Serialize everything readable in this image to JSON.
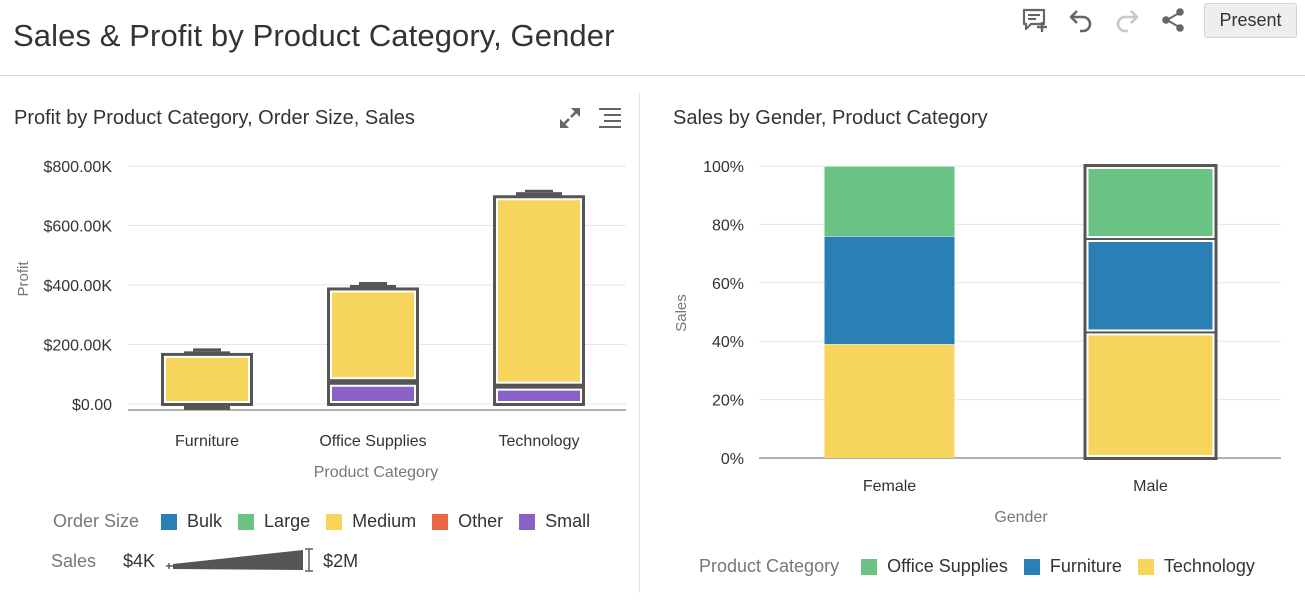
{
  "page": {
    "title": "Sales & Profit by Product Category, Gender"
  },
  "toolbar": {
    "icons": [
      "comment-add-icon",
      "undo-icon",
      "redo-icon",
      "share-icon"
    ],
    "present_label": "Present"
  },
  "colors": {
    "bulk": "#2a7fb4",
    "large": "#6ac384",
    "medium": "#f7d45c",
    "other": "#ec6645",
    "small": "#8a62c7",
    "outline": "#555555"
  },
  "left_panel": {
    "title": "Profit by Product Category, Order Size, Sales",
    "icons": [
      "expand-icon",
      "menu-icon"
    ],
    "legend": {
      "label": "Order Size",
      "items": [
        {
          "name": "Bulk",
          "color": "#2a7fb4"
        },
        {
          "name": "Large",
          "color": "#6ac384"
        },
        {
          "name": "Medium",
          "color": "#f7d45c"
        },
        {
          "name": "Other",
          "color": "#ec6645"
        },
        {
          "name": "Small",
          "color": "#8a62c7"
        }
      ]
    },
    "size_legend": {
      "label": "Sales",
      "min": "$4K",
      "max": "$2M"
    }
  },
  "right_panel": {
    "title": "Sales by Gender, Product Category",
    "legend": {
      "label": "Product Category",
      "items": [
        {
          "name": "Office Supplies",
          "color": "#6ac384"
        },
        {
          "name": "Furniture",
          "color": "#2a7fb4"
        },
        {
          "name": "Technology",
          "color": "#f7d45c"
        }
      ]
    }
  },
  "chart_data": [
    {
      "type": "bar",
      "title": "Profit by Product Category, Order Size, Sales",
      "xlabel": "Product Category",
      "ylabel": "Profit",
      "categories": [
        "Furniture",
        "Office Supplies",
        "Technology"
      ],
      "ylim": [
        -20,
        800
      ],
      "yticks": [
        0,
        200,
        400,
        600,
        800
      ],
      "ytick_labels": [
        "$0.00",
        "$200.00K",
        "$400.00K",
        "$600.00K",
        "$800.00K"
      ],
      "unit": "thousands of dollars",
      "grid": true,
      "stacking": "stacked",
      "series": [
        {
          "name": "Small",
          "color": "#8a62c7",
          "segments": [
            [
              0,
              0
            ],
            [
              0,
              68
            ],
            [
              0,
              55
            ]
          ]
        },
        {
          "name": "Medium",
          "color": "#f7d45c",
          "segments": [
            [
              0,
              165
            ],
            [
              80,
              385
            ],
            [
              65,
              695
            ]
          ]
        },
        {
          "name": "Large",
          "color": "#6ac384",
          "segments": [
            [
              165,
              177
            ],
            [
              385,
              400
            ],
            [
              695,
              712
            ]
          ]
        },
        {
          "name": "Bulk",
          "color": "#2a7fb4",
          "segments": [
            [
              177,
              187
            ],
            [
              400,
              410
            ],
            [
              712,
              720
            ]
          ]
        },
        {
          "name": "Other",
          "color": "#ec6645",
          "segments": [
            [
              -20,
              0
            ],
            [
              0,
              0
            ],
            [
              0,
              0
            ]
          ]
        }
      ],
      "legend": "bottom",
      "size_legend": {
        "label": "Sales",
        "min": "$4K",
        "max": "$2M"
      }
    },
    {
      "type": "bar",
      "title": "Sales by Gender, Product Category",
      "xlabel": "Gender",
      "ylabel": "Sales",
      "categories": [
        "Female",
        "Male"
      ],
      "ylim": [
        0,
        100
      ],
      "yticks": [
        0,
        20,
        40,
        60,
        80,
        100
      ],
      "ytick_labels": [
        "0%",
        "20%",
        "40%",
        "60%",
        "80%",
        "100%"
      ],
      "stacking": "percent",
      "grid": true,
      "series": [
        {
          "name": "Technology",
          "color": "#f7d45c",
          "values": [
            39,
            43
          ]
        },
        {
          "name": "Furniture",
          "color": "#2a7fb4",
          "values": [
            37,
            32
          ]
        },
        {
          "name": "Office Supplies",
          "color": "#6ac384",
          "values": [
            24,
            25
          ]
        }
      ],
      "selected": [
        "Male"
      ],
      "legend": "bottom"
    }
  ]
}
